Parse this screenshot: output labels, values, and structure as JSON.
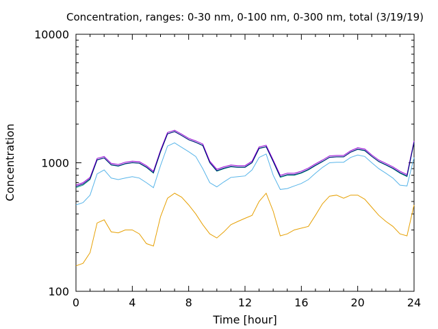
{
  "chart_data": {
    "type": "line",
    "title": "Concentration, ranges: 0-30 nm, 0-100 nm, 0-300 nm, total (3/19/19)",
    "xlabel": "Time [hour]",
    "ylabel": "Concentration",
    "xlim": [
      0,
      24
    ],
    "ylim": [
      100,
      10000
    ],
    "yscale": "log",
    "xticks": [
      "0",
      "4",
      "8",
      "12",
      "16",
      "20",
      "24"
    ],
    "yticks": [
      "100",
      "1000",
      "10000"
    ],
    "grid": false,
    "colors": {
      "0-30 nm": "#e69f00",
      "0-100 nm": "#56b4e9",
      "0-300 nm": "#009e73",
      "total": "#9400d3",
      "outline": "#000080"
    },
    "x": [
      0,
      0.5,
      1,
      1.5,
      2,
      2.5,
      3,
      3.5,
      4,
      4.5,
      5,
      5.5,
      6,
      6.5,
      7,
      7.5,
      8,
      8.5,
      9,
      9.5,
      10,
      10.5,
      11,
      11.5,
      12,
      12.5,
      13,
      13.5,
      14,
      14.5,
      15,
      15.5,
      16,
      16.5,
      17,
      17.5,
      18,
      18.5,
      19,
      19.5,
      20,
      20.5,
      21,
      21.5,
      22,
      22.5,
      23,
      23.5,
      24
    ],
    "series": [
      {
        "key": "0-30 nm",
        "values": [
          158,
          165,
          200,
          340,
          360,
          290,
          285,
          300,
          300,
          280,
          235,
          225,
          380,
          530,
          580,
          540,
          470,
          400,
          330,
          280,
          260,
          290,
          330,
          350,
          370,
          390,
          500,
          580,
          420,
          270,
          280,
          300,
          310,
          320,
          390,
          480,
          550,
          560,
          530,
          560,
          560,
          520,
          450,
          390,
          350,
          320,
          280,
          270,
          470
        ]
      },
      {
        "key": "0-100 nm",
        "values": [
          470,
          490,
          560,
          820,
          880,
          760,
          740,
          760,
          780,
          760,
          700,
          640,
          950,
          1350,
          1430,
          1320,
          1220,
          1120,
          900,
          700,
          650,
          710,
          770,
          780,
          790,
          880,
          1100,
          1170,
          800,
          620,
          630,
          660,
          690,
          740,
          830,
          920,
          1000,
          1010,
          1010,
          1100,
          1150,
          1120,
          1000,
          900,
          830,
          760,
          670,
          660,
          1100
        ]
      },
      {
        "key": "0-300 nm",
        "values": [
          640,
          670,
          740,
          1050,
          1090,
          960,
          940,
          980,
          1000,
          990,
          920,
          830,
          1210,
          1680,
          1750,
          1630,
          1510,
          1440,
          1360,
          1000,
          860,
          900,
          930,
          920,
          920,
          1000,
          1290,
          1330,
          1020,
          770,
          800,
          800,
          830,
          880,
          950,
          1020,
          1100,
          1110,
          1110,
          1210,
          1270,
          1240,
          1120,
          1020,
          960,
          900,
          830,
          780,
          1440
        ]
      },
      {
        "key": "total",
        "values": [
          670,
          700,
          770,
          1080,
          1120,
          990,
          970,
          1010,
          1030,
          1020,
          950,
          860,
          1250,
          1720,
          1790,
          1670,
          1550,
          1480,
          1400,
          1030,
          890,
          930,
          960,
          950,
          950,
          1030,
          1330,
          1370,
          1050,
          800,
          830,
          830,
          860,
          910,
          980,
          1050,
          1130,
          1140,
          1140,
          1240,
          1310,
          1280,
          1150,
          1050,
          990,
          930,
          860,
          810,
          1480
        ]
      }
    ]
  }
}
